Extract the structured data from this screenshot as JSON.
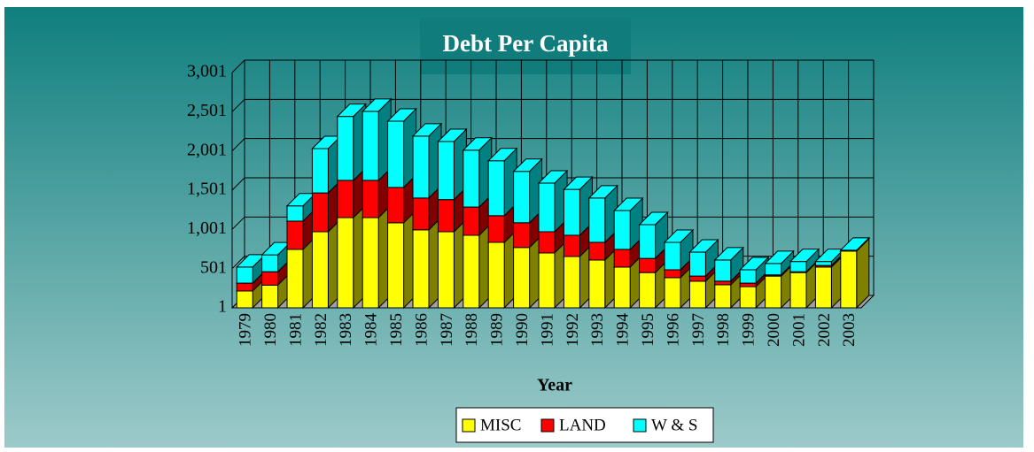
{
  "chart_data": {
    "type": "bar3d_stacked",
    "title": "Debt Per Capita",
    "x_label": "Year",
    "categories": [
      "1979",
      "1980",
      "1981",
      "1982",
      "1983",
      "1984",
      "1985",
      "1986",
      "1987",
      "1988",
      "1989",
      "1990",
      "1991",
      "1992",
      "1993",
      "1994",
      "1995",
      "1996",
      "1997",
      "1998",
      "1999",
      "2000",
      "2001",
      "2002",
      "2003"
    ],
    "series": [
      {
        "name": "MISC",
        "color": "#ffff00",
        "side": "#808000",
        "values": [
          215,
          290,
          745,
          970,
          1150,
          1150,
          1085,
          995,
          970,
          925,
          835,
          770,
          700,
          655,
          610,
          520,
          450,
          385,
          340,
          295,
          270,
          405,
          450,
          520,
          725
        ]
      },
      {
        "name": "LAND",
        "color": "#ff0000",
        "side": "#800000",
        "values": [
          100,
          170,
          360,
          495,
          475,
          475,
          450,
          405,
          410,
          360,
          340,
          315,
          270,
          270,
          225,
          225,
          180,
          100,
          65,
          45,
          45,
          15,
          10,
          20,
          0
        ]
      },
      {
        "name": "W & S",
        "color": "#00ffff",
        "side": "#008080",
        "values": [
          205,
          215,
          195,
          565,
          815,
          880,
          845,
          790,
          740,
          725,
          700,
          655,
          620,
          585,
          565,
          495,
          430,
          350,
          305,
          270,
          170,
          145,
          130,
          50,
          10
        ]
      }
    ],
    "ylim": [
      1,
      3001
    ],
    "yticks": [
      1,
      501,
      {
        "value": 1001,
        "label": "1,001"
      },
      {
        "value": 1501,
        "label": "1,501"
      },
      {
        "value": 2001,
        "label": "2,001"
      },
      {
        "value": 2501,
        "label": "2,501"
      },
      {
        "value": 3001,
        "label": "3,001"
      }
    ],
    "grid": true
  }
}
